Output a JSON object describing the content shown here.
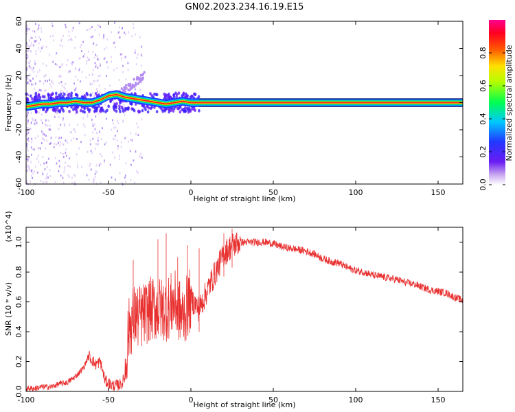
{
  "title": "GN02.2023.234.16.19.E15",
  "chart_data": [
    {
      "type": "heatmap",
      "xlabel": "Height of straight line (km)",
      "ylabel": "Frequency (Hz)",
      "xlim": [
        -100,
        165
      ],
      "ylim": [
        -60,
        60
      ],
      "xticks": [
        -100,
        -50,
        0,
        50,
        100,
        150
      ],
      "yticks": [
        60,
        40,
        20,
        0,
        -20,
        -40,
        -60
      ],
      "colorbar": {
        "label": "Normalized spectral amplitude",
        "range": [
          0.0,
          1.0
        ],
        "ticks": [
          "0.0",
          "0.2",
          "0.4",
          "0.6",
          "0.8"
        ],
        "colormap": "white-purple-blue-cyan-green-yellow-red-magenta"
      },
      "ridge": {
        "x": [
          -100,
          -95,
          -90,
          -85,
          -80,
          -75,
          -70,
          -65,
          -60,
          -55,
          -50,
          -45,
          -40,
          -35,
          -30,
          -25,
          -20,
          -15,
          -10,
          -5,
          0,
          5,
          165
        ],
        "y": [
          -3,
          -2,
          -1,
          -1,
          0,
          0,
          1,
          0,
          0,
          2,
          5,
          6,
          4,
          3,
          2,
          1,
          0,
          -1,
          0,
          1,
          0,
          0,
          0
        ]
      },
      "grid": false
    },
    {
      "type": "line",
      "xlabel": "Height of straight line (km)",
      "ylabel": "SNR (10 * v/v)",
      "y_multiplier": "(x10^4)",
      "xlim": [
        -100,
        165
      ],
      "ylim": [
        0.0,
        1.1
      ],
      "xticks": [
        -100,
        -50,
        0,
        50,
        100,
        150
      ],
      "yticks": [
        "0.0",
        "0.2",
        "0.4",
        "0.6",
        "0.8",
        "1.0"
      ],
      "series": [
        {
          "color": "#e83030",
          "x": [
            -100,
            -95,
            -90,
            -85,
            -80,
            -75,
            -70,
            -65,
            -62,
            -58,
            -55,
            -52,
            -48,
            -45,
            -42,
            -40,
            -38,
            -35,
            -30,
            -25,
            -20,
            -15,
            -10,
            -5,
            0,
            5,
            10,
            15,
            20,
            25,
            30,
            35,
            40,
            45,
            50,
            55,
            60,
            65,
            70,
            75,
            80,
            85,
            90,
            95,
            100,
            105,
            110,
            115,
            120,
            125,
            130,
            135,
            140,
            145,
            150,
            155,
            160,
            165
          ],
          "y": [
            0.02,
            0.02,
            0.03,
            0.03,
            0.05,
            0.06,
            0.1,
            0.16,
            0.24,
            0.18,
            0.2,
            0.07,
            0.04,
            0.04,
            0.05,
            0.1,
            0.4,
            0.5,
            0.5,
            0.55,
            0.55,
            0.55,
            0.6,
            0.5,
            0.62,
            0.55,
            0.68,
            0.8,
            0.92,
            0.98,
            1.0,
            1.0,
            1.0,
            1.0,
            0.99,
            0.97,
            0.96,
            0.95,
            0.94,
            0.92,
            0.89,
            0.87,
            0.86,
            0.83,
            0.81,
            0.8,
            0.78,
            0.77,
            0.76,
            0.75,
            0.73,
            0.72,
            0.7,
            0.68,
            0.67,
            0.66,
            0.63,
            0.61
          ],
          "spikes": [
            {
              "x": -35,
              "y": 0.88
            },
            {
              "x": -20,
              "y": 1.02
            },
            {
              "x": -15,
              "y": 1.06
            },
            {
              "x": -8,
              "y": 0.9
            },
            {
              "x": -2,
              "y": 0.98
            },
            {
              "x": 5,
              "y": 0.96
            },
            {
              "x": 20,
              "y": 1.06
            },
            {
              "x": 25,
              "y": 1.09
            }
          ]
        }
      ],
      "grid": false
    }
  ]
}
